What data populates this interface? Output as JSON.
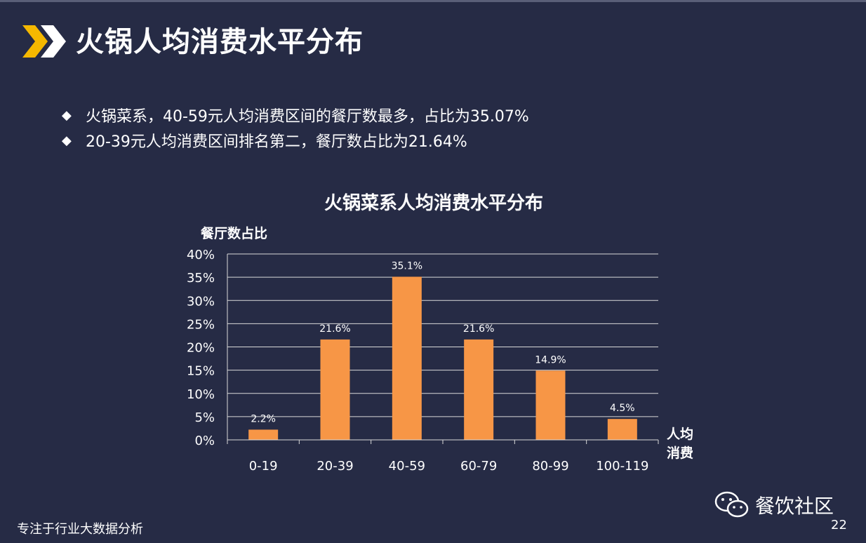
{
  "slide": {
    "title": "火锅人均消费水平分布",
    "bullets": [
      "火锅菜系，40-59元人均消费区间的餐厅数最多，占比为35.07%",
      "20-39元人均消费区间排名第二，餐厅数占比为21.64%"
    ],
    "bullet_symbol": "◆",
    "footer_left": "专注于行业大数据分析",
    "brand": "餐饮社区",
    "page_number": "22",
    "colors": {
      "background": "#262b45",
      "bar": "#f79646",
      "accent": "#f5b800"
    }
  },
  "chart_data": {
    "type": "bar",
    "title": "火锅菜系人均消费水平分布",
    "ylabel": "餐厅数占比",
    "xlabel": "人均消费",
    "categories": [
      "0-19",
      "20-39",
      "40-59",
      "60-79",
      "80-99",
      "100-119"
    ],
    "values": [
      2.2,
      21.6,
      35.1,
      21.6,
      14.9,
      4.5
    ],
    "data_labels": [
      "2.2%",
      "21.6%",
      "35.1%",
      "21.6%",
      "14.9%",
      "4.5%"
    ],
    "ylim": [
      0,
      40
    ],
    "yticks": [
      0,
      5,
      10,
      15,
      20,
      25,
      30,
      35,
      40
    ],
    "ytick_labels": [
      "0%",
      "5%",
      "10%",
      "15%",
      "20%",
      "25%",
      "30%",
      "35%",
      "40%"
    ],
    "grid": true,
    "legend": "none"
  }
}
